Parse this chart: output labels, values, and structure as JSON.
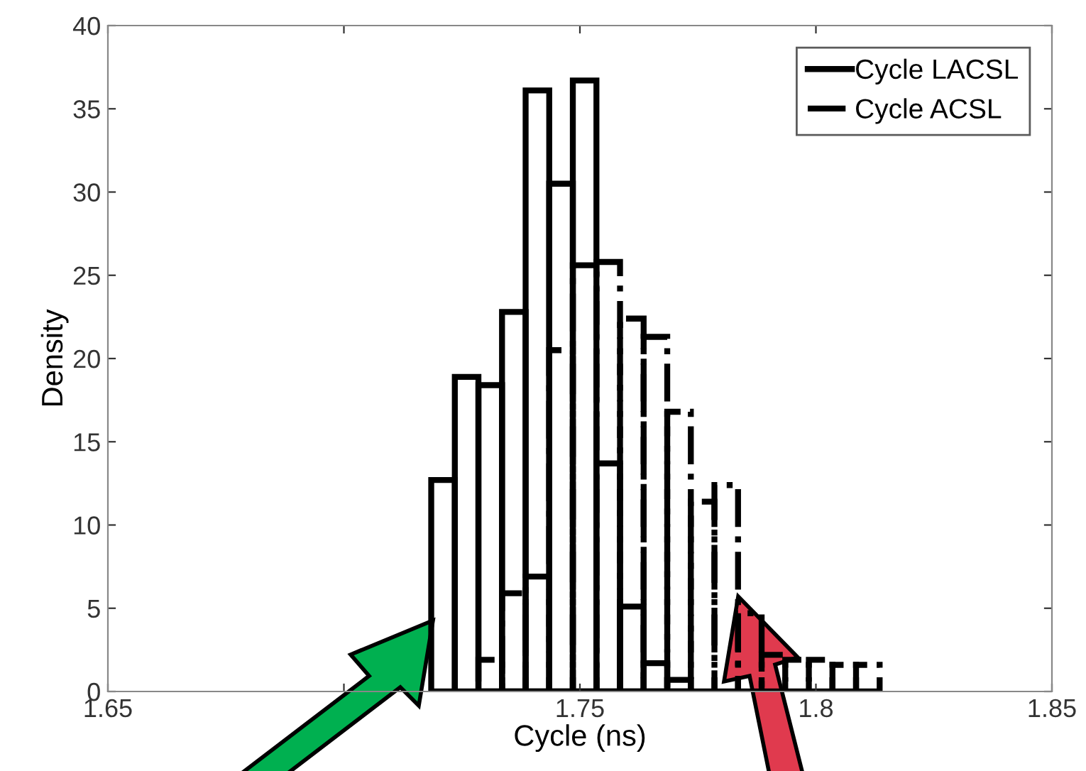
{
  "chart_data": {
    "type": "histogram",
    "xlabel": "Cycle (ns)",
    "ylabel": "Density",
    "bins": [
      1.7185,
      1.7235,
      1.7285,
      1.7335,
      1.7385,
      1.7435,
      1.7485,
      1.7535,
      1.7585,
      1.7635,
      1.7685,
      1.7735,
      1.7785,
      1.7835,
      1.7885,
      1.7935,
      1.7985,
      1.8035,
      1.8085,
      1.8135
    ],
    "series": [
      {
        "name": "Cycle LACSL",
        "color": "#000000",
        "line_style": "solid",
        "values": [
          12.7,
          18.9,
          18.4,
          22.8,
          36.1,
          30.5,
          36.7,
          13.7,
          5.1,
          1.7,
          0.7,
          0,
          0,
          0,
          0,
          0,
          0,
          0,
          0
        ]
      },
      {
        "name": "Cycle ACSL",
        "color": "#000000",
        "line_style": "dashdot",
        "values": [
          0,
          0,
          1.9,
          5.9,
          6.9,
          20.5,
          25.6,
          25.8,
          22.4,
          21.3,
          16.8,
          11.4,
          12.4,
          4.7,
          2.2,
          1.9,
          1.9,
          1.6,
          1.6
        ]
      }
    ],
    "xlim": [
      1.65,
      1.85
    ],
    "xticks": [
      1.65,
      {
        "value": 1.7,
        "label": null
      },
      1.75,
      1.8,
      1.85
    ],
    "ylim": [
      0,
      40
    ],
    "yticks": [
      0,
      5,
      10,
      15,
      20,
      25,
      30,
      35,
      40
    ],
    "grid": false,
    "legend": "top right"
  }
}
